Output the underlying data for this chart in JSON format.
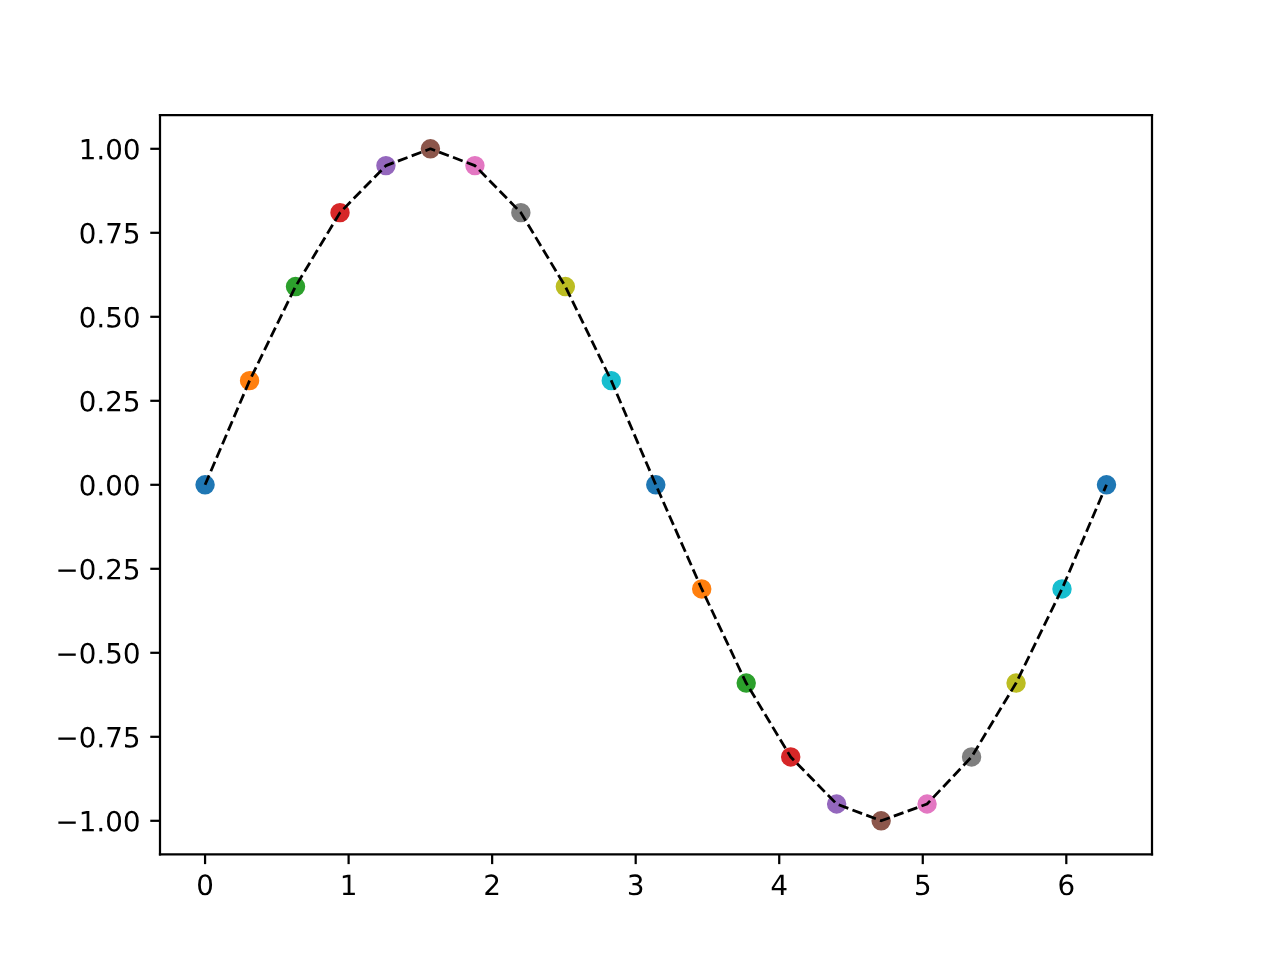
{
  "chart_data": {
    "type": "scatter",
    "x": [
      0,
      0.31,
      0.63,
      0.94,
      1.26,
      1.57,
      1.88,
      2.2,
      2.51,
      2.83,
      3.14,
      3.46,
      3.77,
      4.08,
      4.4,
      4.71,
      5.03,
      5.34,
      5.65,
      5.97,
      6.28
    ],
    "series": [
      {
        "type": "scatter",
        "marker": "circle",
        "colors": [
          "#1f77b4",
          "#ff7f0e",
          "#2ca02c",
          "#d62728",
          "#9467bd",
          "#8c564b",
          "#e377c2",
          "#7f7f7f",
          "#bcbd22",
          "#17becf",
          "#1f77b4",
          "#ff7f0e",
          "#2ca02c",
          "#d62728",
          "#9467bd",
          "#8c564b",
          "#e377c2",
          "#7f7f7f",
          "#bcbd22",
          "#17becf",
          "#1f77b4"
        ],
        "values": [
          0,
          0.31,
          0.59,
          0.81,
          0.95,
          1,
          0.95,
          0.81,
          0.59,
          0.31,
          0,
          -0.31,
          -0.59,
          -0.81,
          -0.95,
          -1,
          -0.95,
          -0.81,
          -0.59,
          -0.31,
          0
        ]
      },
      {
        "type": "line",
        "color": "#000000",
        "line_style": "dashed",
        "marker": "none",
        "values": [
          0,
          0.31,
          0.59,
          0.81,
          0.95,
          1,
          0.95,
          0.81,
          0.59,
          0.31,
          0,
          -0.31,
          -0.59,
          -0.81,
          -0.95,
          -1,
          -0.95,
          -0.81,
          -0.59,
          -0.31,
          0
        ]
      }
    ],
    "xlim": [
      -0.314,
      6.597
    ],
    "ylim": [
      -1.1,
      1.1
    ],
    "xticks": [
      0,
      1,
      2,
      3,
      4,
      5,
      6
    ],
    "yticks": [
      {
        "value": -1,
        "label": "−1.00"
      },
      {
        "value": -0.75,
        "label": "−0.75"
      },
      {
        "value": -0.5,
        "label": "−0.50"
      },
      {
        "value": -0.25,
        "label": "−0.25"
      },
      {
        "value": 0,
        "label": "0.00"
      },
      {
        "value": 0.25,
        "label": "0.25"
      },
      {
        "value": 0.5,
        "label": "0.50"
      },
      {
        "value": 0.75,
        "label": "0.75"
      },
      {
        "value": 1,
        "label": "1.00"
      }
    ],
    "grid": false,
    "legend": false
  }
}
